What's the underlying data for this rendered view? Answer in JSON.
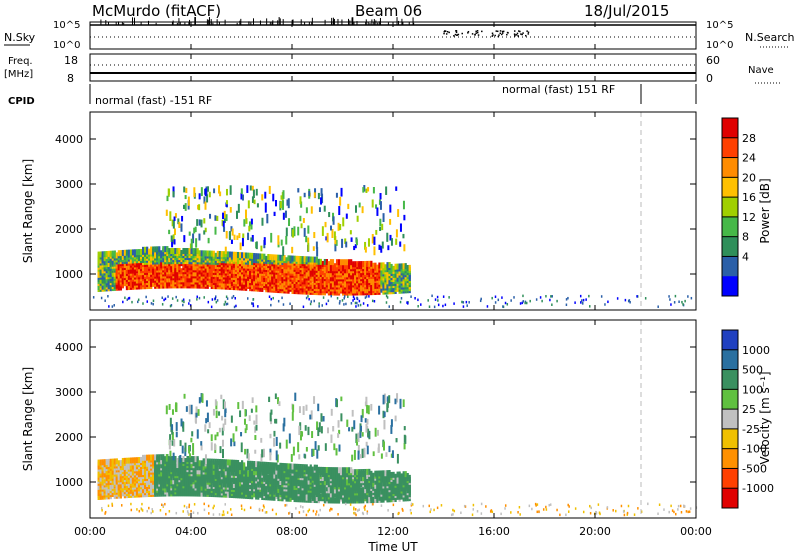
{
  "header": {
    "station": "McMurdo (fitACF)",
    "beam": "Beam 06",
    "date": "18/Jul/2015"
  },
  "top_panels": {
    "nsky_label": "N.Sky",
    "nsky_ticks": [
      "10^5",
      "10^0"
    ],
    "nsearch_label": "N.Search",
    "nsearch_ticks": [
      "10^5",
      "10^0"
    ],
    "freq_label_1": "Freq.",
    "freq_label_2": "[MHz]",
    "freq_ticks": [
      "18",
      "8"
    ],
    "nave_label": "Nave",
    "nave_ticks": [
      "60",
      "0"
    ],
    "cpid_label": "CPID",
    "cpid_left": "normal (fast) -151 RF",
    "cpid_right": "normal (fast) 151 RF"
  },
  "power_scale": {
    "title": "Power [dB]",
    "labels": [
      "28",
      "24",
      "20",
      "16",
      "12",
      "8",
      "4"
    ],
    "colors": [
      "#e00000",
      "#ff4000",
      "#ff8c00",
      "#ffc000",
      "#a0d000",
      "#46b848",
      "#2f8f5a",
      "#2a5fa8",
      "#0000ff"
    ]
  },
  "velocity_scale": {
    "title": "Velocity [m s⁻¹]",
    "labels": [
      "1000",
      "500",
      "100",
      "25",
      "-25",
      "-100",
      "-500",
      "-1000"
    ],
    "colors": [
      "#2040c0",
      "#2a70a0",
      "#3a9060",
      "#60c040",
      "#c0c0c0",
      "#f0c000",
      "#ff9000",
      "#ff4000",
      "#e00000"
    ]
  },
  "x_axis": {
    "title": "Time UT",
    "ticks": [
      "00:00",
      "04:00",
      "08:00",
      "12:00",
      "16:00",
      "20:00",
      "00:00"
    ]
  },
  "chart_data": [
    {
      "type": "heatmap",
      "title": "Power",
      "ylabel": "Slant Range [km]",
      "xlabel": "Time UT",
      "ylim": [
        200,
        4600
      ],
      "xlim": [
        0,
        24
      ],
      "y_ticks": [
        "1000",
        "2000",
        "3000",
        "4000"
      ],
      "x_ticks": [
        "00:00",
        "04:00",
        "08:00",
        "12:00",
        "16:00",
        "20:00",
        "00:00"
      ],
      "colorbar": {
        "label": "Power [dB]",
        "ticks": [
          4,
          8,
          12,
          16,
          20,
          24,
          28
        ]
      },
      "main_echo_region": {
        "time_hours": [
          0.3,
          12.7
        ],
        "range_km": [
          600,
          1600
        ],
        "peak_power_db": 28
      }
    },
    {
      "type": "heatmap",
      "title": "Velocity",
      "ylabel": "Slant Range [km]",
      "xlabel": "Time UT",
      "ylim": [
        200,
        4600
      ],
      "xlim": [
        0,
        24
      ],
      "y_ticks": [
        "1000",
        "2000",
        "3000",
        "4000"
      ],
      "x_ticks": [
        "00:00",
        "04:00",
        "08:00",
        "12:00",
        "16:00",
        "20:00",
        "00:00"
      ],
      "colorbar": {
        "label": "Velocity [m s-1]",
        "ticks": [
          1000,
          500,
          100,
          25,
          -25,
          -100,
          -500,
          -1000
        ]
      },
      "main_echo_region": {
        "time_hours": [
          0.3,
          12.7
        ],
        "range_km": [
          600,
          1600
        ],
        "dominant_velocity_ms": 100
      }
    }
  ]
}
